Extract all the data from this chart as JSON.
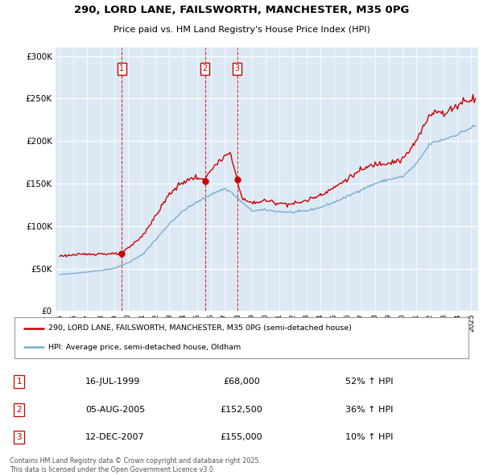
{
  "title_line1": "290, LORD LANE, FAILSWORTH, MANCHESTER, M35 0PG",
  "title_line2": "Price paid vs. HM Land Registry's House Price Index (HPI)",
  "legend_property": "290, LORD LANE, FAILSWORTH, MANCHESTER, M35 0PG (semi-detached house)",
  "legend_hpi": "HPI: Average price, semi-detached house, Oldham",
  "footer": "Contains HM Land Registry data © Crown copyright and database right 2025.\nThis data is licensed under the Open Government Licence v3.0.",
  "transactions": [
    {
      "num": 1,
      "date": "16-JUL-1999",
      "price": 68000,
      "hpi_pct": "52% ↑ HPI",
      "date_x": 1999.54
    },
    {
      "num": 2,
      "date": "05-AUG-2005",
      "price": 152500,
      "hpi_pct": "36% ↑ HPI",
      "date_x": 2005.6
    },
    {
      "num": 3,
      "date": "12-DEC-2007",
      "price": 155000,
      "hpi_pct": "10% ↑ HPI",
      "date_x": 2007.95
    }
  ],
  "property_color": "#cc0000",
  "hpi_color": "#7aadd4",
  "plot_bg_color": "#dce9f5",
  "grid_color": "#ffffff",
  "ylim": [
    0,
    310000
  ],
  "yticks": [
    0,
    50000,
    100000,
    150000,
    200000,
    250000,
    300000
  ],
  "xlim_start": 1994.7,
  "xlim_end": 2025.5,
  "hpi_anchors": [
    [
      1995.0,
      43000
    ],
    [
      1996.0,
      44500
    ],
    [
      1997.0,
      46000
    ],
    [
      1998.0,
      48000
    ],
    [
      1999.0,
      50500
    ],
    [
      2000.0,
      57000
    ],
    [
      2001.0,
      66000
    ],
    [
      2002.0,
      84000
    ],
    [
      2003.0,
      103000
    ],
    [
      2004.0,
      118000
    ],
    [
      2005.0,
      128000
    ],
    [
      2006.0,
      137000
    ],
    [
      2007.0,
      144000
    ],
    [
      2007.5,
      140000
    ],
    [
      2008.0,
      132000
    ],
    [
      2009.0,
      118000
    ],
    [
      2010.0,
      119000
    ],
    [
      2011.0,
      117000
    ],
    [
      2012.0,
      116000
    ],
    [
      2013.0,
      118000
    ],
    [
      2014.0,
      122000
    ],
    [
      2015.0,
      128000
    ],
    [
      2016.0,
      135000
    ],
    [
      2017.0,
      143000
    ],
    [
      2018.0,
      150000
    ],
    [
      2019.0,
      155000
    ],
    [
      2020.0,
      158000
    ],
    [
      2021.0,
      173000
    ],
    [
      2022.0,
      197000
    ],
    [
      2023.0,
      202000
    ],
    [
      2024.0,
      208000
    ],
    [
      2025.3,
      218000
    ]
  ],
  "prop_anchors": [
    [
      1995.0,
      65000
    ],
    [
      1996.0,
      66000
    ],
    [
      1997.0,
      67000
    ],
    [
      1998.0,
      67500
    ],
    [
      1999.0,
      67000
    ],
    [
      1999.54,
      68000
    ],
    [
      2000.0,
      74000
    ],
    [
      2001.0,
      88000
    ],
    [
      2002.0,
      112000
    ],
    [
      2003.0,
      138000
    ],
    [
      2004.0,
      152000
    ],
    [
      2005.0,
      158000
    ],
    [
      2005.55,
      152500
    ],
    [
      2006.0,
      167000
    ],
    [
      2006.5,
      173000
    ],
    [
      2007.0,
      181000
    ],
    [
      2007.4,
      186000
    ],
    [
      2007.95,
      155000
    ],
    [
      2008.3,
      132000
    ],
    [
      2009.0,
      127000
    ],
    [
      2010.0,
      130000
    ],
    [
      2011.0,
      127000
    ],
    [
      2012.0,
      126000
    ],
    [
      2013.0,
      130000
    ],
    [
      2014.0,
      137000
    ],
    [
      2015.0,
      145000
    ],
    [
      2016.0,
      156000
    ],
    [
      2017.0,
      166000
    ],
    [
      2018.0,
      173000
    ],
    [
      2019.0,
      175000
    ],
    [
      2020.0,
      178000
    ],
    [
      2021.0,
      200000
    ],
    [
      2022.0,
      232000
    ],
    [
      2022.5,
      237000
    ],
    [
      2023.0,
      230000
    ],
    [
      2023.5,
      238000
    ],
    [
      2024.0,
      242000
    ],
    [
      2024.5,
      248000
    ],
    [
      2025.3,
      250000
    ]
  ]
}
